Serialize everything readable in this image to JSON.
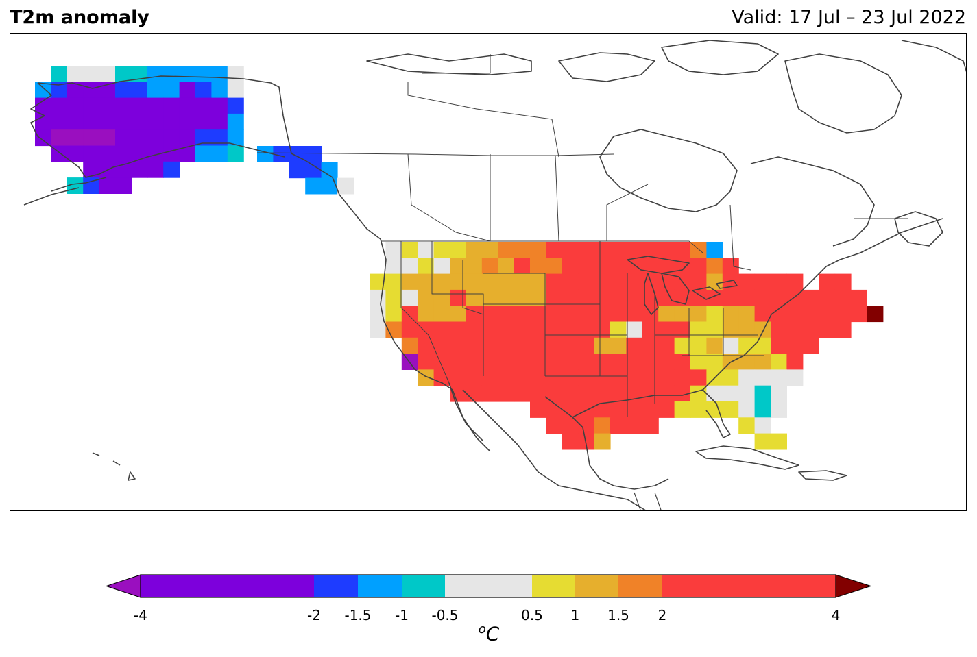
{
  "title": "T2m anomaly",
  "valid": "Valid: 17 Jul – 23 Jul 2022",
  "colorbar": {
    "unit_base": "C",
    "unit_sup": "o",
    "ticks": [
      "-4",
      "-2",
      "-1.5",
      "-1",
      "-0.5",
      "0.5",
      "1",
      "1.5",
      "2",
      "4"
    ],
    "bounds": [
      -4,
      -2,
      -1.5,
      -1,
      -0.5,
      0.5,
      1,
      1.5,
      2,
      4
    ],
    "colors": {
      "below": "#9a0fbf",
      "bins": [
        "#7d00dc",
        "#1e3cff",
        "#00a0ff",
        "#00c8c8",
        "#e6e6e6",
        "#e6dc32",
        "#e6af2d",
        "#f08228",
        "#fa3c3c"
      ],
      "above": "#820000"
    }
  },
  "colors": {
    "coast": "#404040",
    "frame": "#000000"
  }
}
